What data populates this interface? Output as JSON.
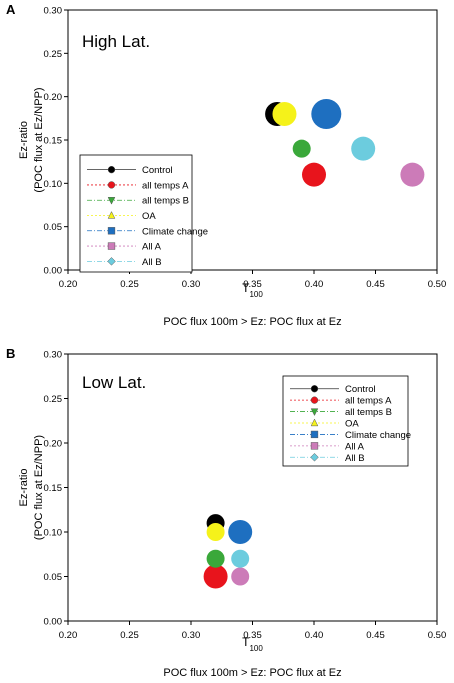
{
  "chart_data": [
    {
      "type": "scatter",
      "panel_label": "A",
      "title": "High Lat.",
      "xlabel": "T",
      "xlabel_sub": "100",
      "xlabel_line2": "POC flux 100m > Ez: POC flux at Ez",
      "ylabel": "Ez-ratio",
      "ylabel_line2": "(POC flux at Ez/NPP)",
      "xlim": [
        0.2,
        0.5
      ],
      "ylim": [
        0.0,
        0.3
      ],
      "xticks": [
        "0.20",
        "0.25",
        "0.30",
        "0.35",
        "0.40",
        "0.45",
        "0.50"
      ],
      "yticks": [
        "0.00",
        "0.05",
        "0.10",
        "0.15",
        "0.20",
        "0.25",
        "0.30"
      ],
      "legend_position": "lower-left",
      "series": [
        {
          "name": "Control",
          "color": "#000000",
          "x": 0.37,
          "y": 0.18,
          "size": 2
        },
        {
          "name": "all temps A",
          "color": "#e8141c",
          "x": 0.4,
          "y": 0.11,
          "size": 2
        },
        {
          "name": "all temps B",
          "color": "#3aa83a",
          "x": 0.39,
          "y": 0.14,
          "size": 1
        },
        {
          "name": "OA",
          "color": "#f5f21a",
          "x": 0.376,
          "y": 0.18,
          "size": 2
        },
        {
          "name": "Climate change",
          "color": "#1e6fc0",
          "x": 0.41,
          "y": 0.18,
          "size": 3
        },
        {
          "name": "All A",
          "color": "#cc7bb8",
          "x": 0.48,
          "y": 0.11,
          "size": 2
        },
        {
          "name": "All B",
          "color": "#6cccde",
          "x": 0.44,
          "y": 0.14,
          "size": 2
        }
      ]
    },
    {
      "type": "scatter",
      "panel_label": "B",
      "title": "Low Lat.",
      "xlabel": "T",
      "xlabel_sub": "100",
      "xlabel_line2": "POC flux 100m > Ez: POC flux at Ez",
      "ylabel": "Ez-ratio",
      "ylabel_line2": "(POC flux at Ez/NPP)",
      "xlim": [
        0.2,
        0.5
      ],
      "ylim": [
        0.0,
        0.3
      ],
      "xticks": [
        "0.20",
        "0.25",
        "0.30",
        "0.35",
        "0.40",
        "0.45",
        "0.50"
      ],
      "yticks": [
        "0.00",
        "0.05",
        "0.10",
        "0.15",
        "0.20",
        "0.25",
        "0.30"
      ],
      "legend_position": "top-right",
      "series": [
        {
          "name": "Control",
          "color": "#000000",
          "x": 0.32,
          "y": 0.11,
          "size": 1
        },
        {
          "name": "all temps A",
          "color": "#e8141c",
          "x": 0.32,
          "y": 0.05,
          "size": 2
        },
        {
          "name": "all temps B",
          "color": "#3aa83a",
          "x": 0.32,
          "y": 0.07,
          "size": 1
        },
        {
          "name": "OA",
          "color": "#f5f21a",
          "x": 0.32,
          "y": 0.1,
          "size": 1
        },
        {
          "name": "Climate change",
          "color": "#1e6fc0",
          "x": 0.34,
          "y": 0.1,
          "size": 2
        },
        {
          "name": "All A",
          "color": "#cc7bb8",
          "x": 0.34,
          "y": 0.05,
          "size": 1
        },
        {
          "name": "All B",
          "color": "#6cccde",
          "x": 0.34,
          "y": 0.07,
          "size": 1
        }
      ]
    }
  ],
  "legend_markers": [
    {
      "name": "Control",
      "marker": "circle",
      "color": "#000000"
    },
    {
      "name": "all temps A",
      "marker": "circle",
      "color": "#e8141c"
    },
    {
      "name": "all temps B",
      "marker": "triangle-down",
      "color": "#3aa83a"
    },
    {
      "name": "OA",
      "marker": "triangle-up",
      "color": "#f5f21a"
    },
    {
      "name": "Climate change",
      "marker": "square",
      "color": "#1e6fc0"
    },
    {
      "name": "All A",
      "marker": "square",
      "color": "#cc7bb8"
    },
    {
      "name": "All B",
      "marker": "diamond",
      "color": "#6cccde"
    }
  ]
}
